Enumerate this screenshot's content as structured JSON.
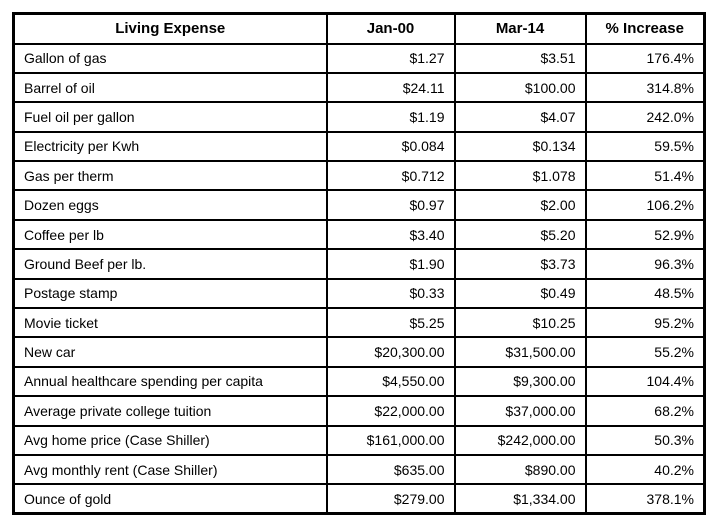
{
  "colors": {
    "border": "#000000",
    "background": "#ffffff",
    "text": "#000000"
  },
  "chart_data": {
    "type": "table",
    "columns": [
      "Living Expense",
      "Jan-00",
      "Mar-14",
      "% Increase"
    ],
    "rows": [
      [
        "Gallon of gas",
        "$1.27",
        "$3.51",
        "176.4%"
      ],
      [
        "Barrel of oil",
        "$24.11",
        "$100.00",
        "314.8%"
      ],
      [
        "Fuel oil per gallon",
        "$1.19",
        "$4.07",
        "242.0%"
      ],
      [
        "Electricity per Kwh",
        "$0.084",
        "$0.134",
        "59.5%"
      ],
      [
        "Gas per therm",
        "$0.712",
        "$1.078",
        "51.4%"
      ],
      [
        "Dozen eggs",
        "$0.97",
        "$2.00",
        "106.2%"
      ],
      [
        "Coffee per lb",
        "$3.40",
        "$5.20",
        "52.9%"
      ],
      [
        "Ground Beef per lb.",
        "$1.90",
        "$3.73",
        "96.3%"
      ],
      [
        "Postage stamp",
        "$0.33",
        "$0.49",
        "48.5%"
      ],
      [
        "Movie ticket",
        "$5.25",
        "$10.25",
        "95.2%"
      ],
      [
        "New car",
        "$20,300.00",
        "$31,500.00",
        "55.2%"
      ],
      [
        "Annual healthcare spending per capita",
        "$4,550.00",
        "$9,300.00",
        "104.4%"
      ],
      [
        "Average private college tuition",
        "$22,000.00",
        "$37,000.00",
        "68.2%"
      ],
      [
        "Avg home price (Case Shiller)",
        "$161,000.00",
        "$242,000.00",
        "50.3%"
      ],
      [
        "Avg monthly rent (Case Shiller)",
        "$635.00",
        "$890.00",
        "40.2%"
      ],
      [
        "Ounce of gold",
        "$279.00",
        "$1,334.00",
        "378.1%"
      ]
    ]
  }
}
